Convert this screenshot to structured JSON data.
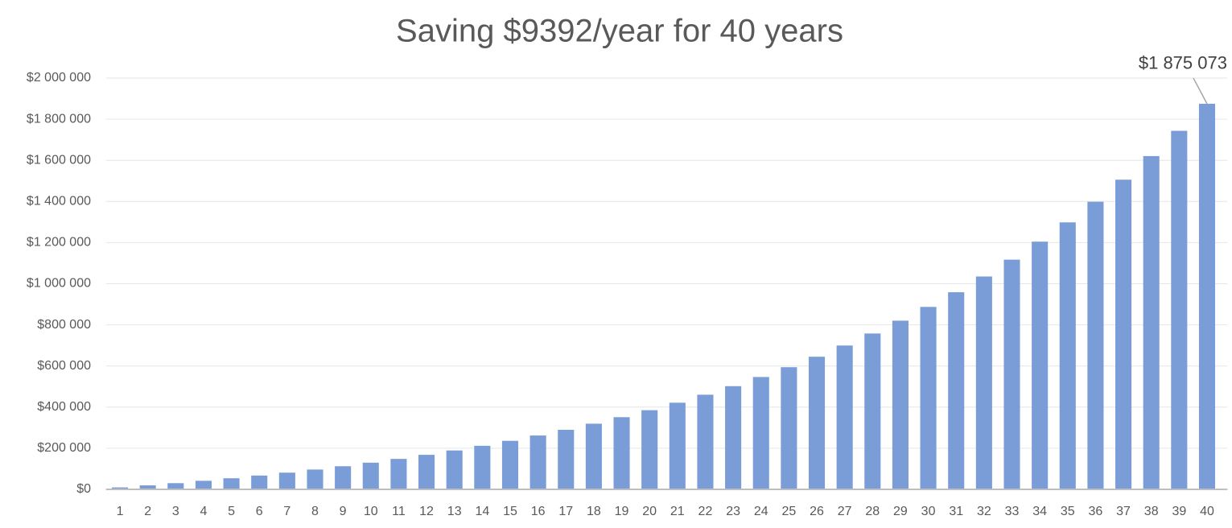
{
  "chart_data": {
    "type": "bar",
    "title": "Saving $9392/year for 40 years",
    "categories": [
      "1",
      "2",
      "3",
      "4",
      "5",
      "6",
      "7",
      "8",
      "9",
      "10",
      "11",
      "12",
      "13",
      "14",
      "15",
      "16",
      "17",
      "18",
      "19",
      "20",
      "21",
      "22",
      "23",
      "24",
      "25",
      "26",
      "27",
      "28",
      "29",
      "30",
      "31",
      "32",
      "33",
      "34",
      "35",
      "36",
      "37",
      "38",
      "39",
      "40"
    ],
    "values": [
      9392,
      19441,
      30194,
      41700,
      54011,
      67184,
      81279,
      96361,
      112498,
      129765,
      148241,
      168010,
      189163,
      211796,
      236014,
      261927,
      289654,
      319322,
      351067,
      385034,
      421378,
      460266,
      501877,
      546400,
      594040,
      645015,
      699558,
      757919,
      820365,
      887183,
      958678,
      1035177,
      1117031,
      1204615,
      1298330,
      1398605,
      1505899,
      1620704,
      1743545,
      1875073
    ],
    "value_labels": [
      null,
      null,
      null,
      null,
      null,
      null,
      null,
      null,
      null,
      null,
      null,
      null,
      null,
      null,
      null,
      null,
      null,
      null,
      null,
      null,
      null,
      null,
      null,
      null,
      null,
      null,
      null,
      null,
      null,
      null,
      null,
      null,
      null,
      null,
      null,
      null,
      null,
      null,
      null,
      "$1 875 073"
    ],
    "color": "#7a9dd8",
    "ylim": [
      0,
      2000000
    ],
    "yticks": [
      {
        "value": 0,
        "label": "$0"
      },
      {
        "value": 200000,
        "label": "$200 000"
      },
      {
        "value": 400000,
        "label": "$400 000"
      },
      {
        "value": 600000,
        "label": "$600 000"
      },
      {
        "value": 800000,
        "label": "$800 000"
      },
      {
        "value": 1000000,
        "label": "$1 000 000"
      },
      {
        "value": 1200000,
        "label": "$1 200 000"
      },
      {
        "value": 1400000,
        "label": "$1 400 000"
      },
      {
        "value": 1600000,
        "label": "$1 600 000"
      },
      {
        "value": 1800000,
        "label": "$1 800 000"
      },
      {
        "value": 2000000,
        "label": "$2 000 000"
      }
    ],
    "grid": true
  }
}
